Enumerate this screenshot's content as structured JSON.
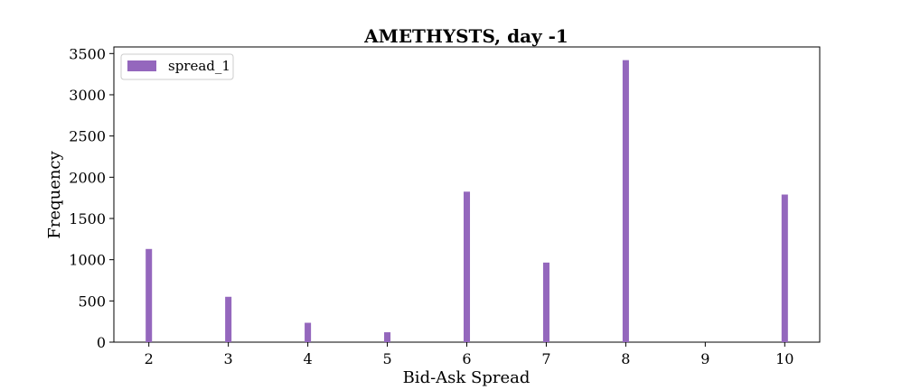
{
  "chart_data": {
    "type": "bar",
    "title": "AMETHYSTS, day -1",
    "xlabel": "Bid-Ask Spread",
    "ylabel": "Frequency",
    "xlim": [
      1.56,
      10.44
    ],
    "ylim": [
      0,
      3580
    ],
    "xticks": [
      2,
      3,
      4,
      5,
      6,
      7,
      8,
      9,
      10
    ],
    "yticks": [
      0,
      500,
      1000,
      1500,
      2000,
      2500,
      3000,
      3500
    ],
    "bar_width": 0.08,
    "legend_position": "upper-left",
    "series": [
      {
        "name": "spread_1",
        "color": "#9467bd",
        "x": [
          2,
          3,
          4,
          5,
          6,
          7,
          8,
          10
        ],
        "values": [
          1130,
          550,
          235,
          120,
          1825,
          965,
          3420,
          1790
        ]
      }
    ]
  }
}
